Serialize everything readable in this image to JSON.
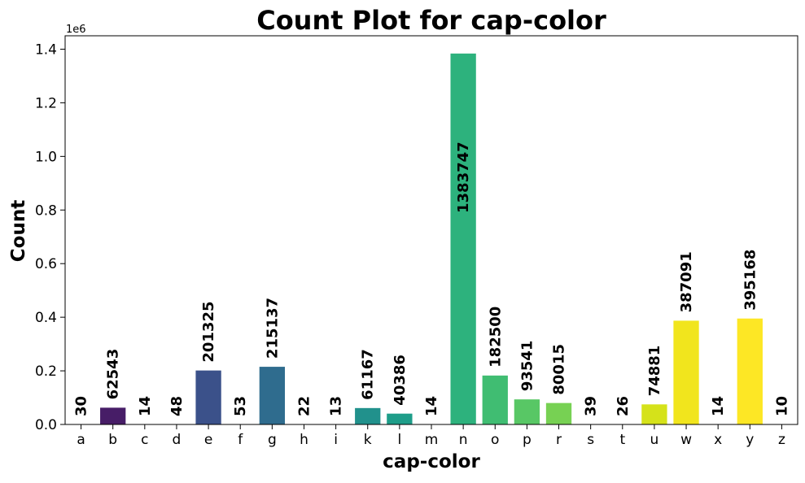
{
  "chart_data": {
    "type": "bar",
    "title": "Count Plot for cap-color",
    "xlabel": "cap-color",
    "ylabel": "Count",
    "y_offset_label": "1e6",
    "ylim": [
      0,
      1450000
    ],
    "yticks": [
      0,
      200000,
      400000,
      600000,
      800000,
      1000000,
      1200000,
      1400000
    ],
    "ytick_labels": [
      "0.0",
      "0.2",
      "0.4",
      "0.6",
      "0.8",
      "1.0",
      "1.2",
      "1.4"
    ],
    "categories": [
      "a",
      "b",
      "c",
      "d",
      "e",
      "f",
      "g",
      "h",
      "i",
      "k",
      "l",
      "m",
      "n",
      "o",
      "p",
      "r",
      "s",
      "t",
      "u",
      "w",
      "x",
      "y",
      "z"
    ],
    "values": [
      30,
      62543,
      14,
      48,
      201325,
      53,
      215137,
      22,
      13,
      61167,
      40386,
      14,
      1383747,
      182500,
      93541,
      80015,
      39,
      26,
      74881,
      387091,
      14,
      395168,
      10
    ],
    "colors": [
      "#440154",
      "#471d67",
      "#472e7c",
      "#423f85",
      "#3b518a",
      "#355f8d",
      "#2f6c8e",
      "#2a788e",
      "#25858e",
      "#21918c",
      "#1e9d89",
      "#22a884",
      "#2db27d",
      "#40bd72",
      "#58c765",
      "#77d153",
      "#95d840",
      "#b5de2b",
      "#d5e21a",
      "#f1e51d",
      "#fde725",
      "#fde725",
      "#fde725"
    ],
    "grid": false,
    "legend": "none"
  }
}
